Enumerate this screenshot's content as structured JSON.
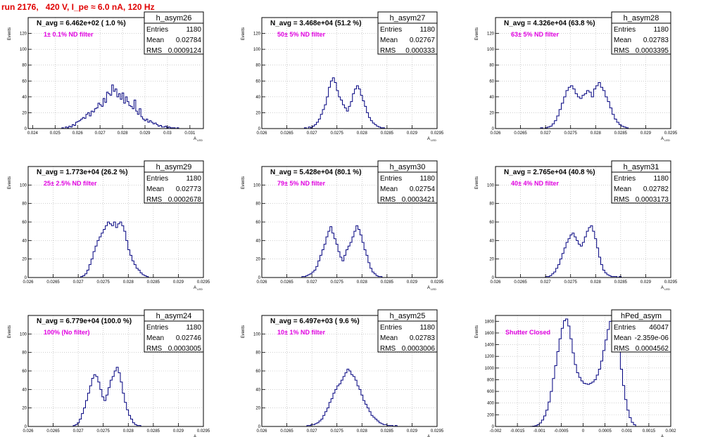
{
  "run_title": "run 2176,   420 V, I_pe ≈ 6.0 nA, 120 Hz",
  "colors": {
    "title": "#e00000",
    "note": "#e000e0",
    "hist": "#00007f",
    "frame": "#000000",
    "grid": "#b0b0b0"
  },
  "stat_labels": {
    "entries": "Entries",
    "mean": "Mean",
    "rms": "RMS"
  },
  "x_axis_label": "A_LED",
  "y_axis_label": "Events",
  "chart_data": [
    {
      "type": "histogram",
      "name": "h_asym26",
      "n_avg": "N_avg = 6.462e+02 ( 1.0 %)",
      "note": "1± 0.1% ND filter",
      "entries": "1180",
      "mean": "0.02784",
      "rms": "0.0009124",
      "xlim": [
        0.0238,
        0.0316
      ],
      "ylim": [
        0,
        140
      ],
      "xticks": [
        0.024,
        0.025,
        0.026,
        0.027,
        0.028,
        0.029,
        0.03,
        0.031
      ],
      "xtick_labels": [
        "0.024",
        "0.025",
        "0.026",
        "0.027",
        "0.028",
        "0.029",
        "0.03",
        "0.031"
      ],
      "yticks": [
        0,
        20,
        40,
        60,
        80,
        100,
        120
      ],
      "bins": {
        "lo": 0.0253,
        "hi": 0.0305,
        "counts": [
          1,
          0,
          2,
          1,
          3,
          2,
          5,
          4,
          8,
          9,
          10,
          12,
          14,
          13,
          18,
          20,
          16,
          22,
          21,
          25,
          26,
          32,
          30,
          28,
          38,
          33,
          46,
          44,
          42,
          55,
          47,
          50,
          40,
          44,
          37,
          45,
          32,
          40,
          34,
          29,
          28,
          25,
          36,
          22,
          18,
          25,
          15,
          12,
          10,
          12,
          8,
          10,
          8,
          6,
          7,
          5,
          3,
          4,
          2,
          2,
          3,
          1,
          2,
          1,
          1,
          1,
          0,
          1
        ]
      }
    },
    {
      "type": "histogram",
      "name": "h_asym27",
      "n_avg": "N_avg = 3.468e+04 (51.2 %)",
      "note": "50± 5% ND filter",
      "entries": "1180",
      "mean": "0.02767",
      "rms": "0.000333",
      "xlim": [
        0.026,
        0.0295
      ],
      "ylim": [
        0,
        140
      ],
      "xticks": [
        0.026,
        0.0265,
        0.027,
        0.0275,
        0.028,
        0.0285,
        0.029,
        0.0295
      ],
      "xtick_labels": [
        "0.026",
        "0.0265",
        "0.027",
        "0.0275",
        "0.028",
        "0.0285",
        "0.029",
        "0.0295"
      ],
      "yticks": [
        0,
        20,
        40,
        60,
        80,
        100,
        120
      ],
      "bins": {
        "lo": 0.02685,
        "hi": 0.02845,
        "counts": [
          1,
          0,
          2,
          1,
          3,
          5,
          8,
          12,
          18,
          24,
          30,
          40,
          52,
          60,
          64,
          58,
          48,
          40,
          36,
          30,
          26,
          22,
          28,
          34,
          44,
          50,
          54,
          50,
          42,
          35,
          28,
          20,
          14,
          10,
          7,
          5,
          3,
          2,
          1,
          1
        ]
      }
    },
    {
      "type": "histogram",
      "name": "h_asym28",
      "n_avg": "N_avg = 4.326e+04 (63.8 %)",
      "note": "63± 5% ND filter",
      "entries": "1180",
      "mean": "0.02783",
      "rms": "0.0003395",
      "xlim": [
        0.026,
        0.0295
      ],
      "ylim": [
        0,
        140
      ],
      "xticks": [
        0.026,
        0.0265,
        0.027,
        0.0275,
        0.028,
        0.0285,
        0.029,
        0.0295
      ],
      "xtick_labels": [
        "0.026",
        "0.0265",
        "0.027",
        "0.0275",
        "0.028",
        "0.0285",
        "0.029",
        "0.0295"
      ],
      "yticks": [
        0,
        20,
        40,
        60,
        80,
        100,
        120
      ],
      "bins": {
        "lo": 0.0269,
        "hi": 0.02865,
        "counts": [
          1,
          0,
          1,
          2,
          3,
          6,
          10,
          16,
          24,
          32,
          40,
          48,
          52,
          54,
          50,
          44,
          40,
          38,
          42,
          44,
          48,
          46,
          40,
          50,
          54,
          58,
          52,
          48,
          40,
          34,
          26,
          18,
          12,
          8,
          5,
          3,
          2,
          1
        ]
      }
    },
    {
      "type": "histogram",
      "name": "h_asym29",
      "n_avg": "N_avg = 1.773e+04 (26.2 %)",
      "note": "25± 2.5% ND filter",
      "entries": "1180",
      "mean": "0.02773",
      "rms": "0.0002678",
      "xlim": [
        0.026,
        0.0295
      ],
      "ylim": [
        0,
        120
      ],
      "xticks": [
        0.026,
        0.0265,
        0.027,
        0.0275,
        0.028,
        0.0285,
        0.029,
        0.0295
      ],
      "xtick_labels": [
        "0.026",
        "0.0265",
        "0.027",
        "0.0275",
        "0.028",
        "0.0285",
        "0.029",
        "0.0295"
      ],
      "yticks": [
        0,
        20,
        40,
        60,
        80,
        100
      ],
      "bins": {
        "lo": 0.02705,
        "hi": 0.0284,
        "counts": [
          1,
          2,
          4,
          8,
          14,
          20,
          28,
          34,
          40,
          44,
          48,
          52,
          56,
          60,
          58,
          56,
          60,
          54,
          58,
          60,
          56,
          50,
          40,
          30,
          24,
          18,
          14,
          10,
          8,
          5,
          3,
          2,
          1
        ]
      }
    },
    {
      "type": "histogram",
      "name": "h_asym30",
      "n_avg": "N_avg = 5.428e+04 (80.1 %)",
      "note": "79± 5% ND filter",
      "entries": "1180",
      "mean": "0.02754",
      "rms": "0.0003421",
      "xlim": [
        0.026,
        0.0295
      ],
      "ylim": [
        0,
        120
      ],
      "xticks": [
        0.026,
        0.0265,
        0.027,
        0.0275,
        0.028,
        0.0285,
        0.029,
        0.0295
      ],
      "xtick_labels": [
        "0.026",
        "0.0265",
        "0.027",
        "0.0275",
        "0.028",
        "0.0285",
        "0.029",
        "0.0295"
      ],
      "yticks": [
        0,
        20,
        40,
        60,
        80,
        100
      ],
      "bins": {
        "lo": 0.0268,
        "hi": 0.0284,
        "counts": [
          1,
          1,
          2,
          3,
          4,
          6,
          8,
          12,
          18,
          24,
          30,
          36,
          44,
          50,
          55,
          48,
          42,
          36,
          28,
          22,
          18,
          24,
          30,
          34,
          38,
          44,
          50,
          56,
          52,
          46,
          38,
          30,
          24,
          16,
          10,
          6,
          4,
          2,
          1,
          1
        ]
      }
    },
    {
      "type": "histogram",
      "name": "h_asym31",
      "n_avg": "N_avg = 2.765e+04 (40.8 %)",
      "note": "40± 4% ND filter",
      "entries": "1180",
      "mean": "0.02782",
      "rms": "0.0003173",
      "xlim": [
        0.026,
        0.0295
      ],
      "ylim": [
        0,
        120
      ],
      "xticks": [
        0.026,
        0.0265,
        0.027,
        0.0275,
        0.028,
        0.0285,
        0.029,
        0.0295
      ],
      "xtick_labels": [
        "0.026",
        "0.0265",
        "0.027",
        "0.0275",
        "0.028",
        "0.0285",
        "0.029",
        "0.0295"
      ],
      "yticks": [
        0,
        20,
        40,
        60,
        80,
        100
      ],
      "bins": {
        "lo": 0.027,
        "hi": 0.02855,
        "counts": [
          1,
          1,
          2,
          4,
          6,
          10,
          14,
          20,
          26,
          32,
          38,
          42,
          46,
          48,
          44,
          40,
          36,
          34,
          38,
          44,
          50,
          54,
          56,
          50,
          42,
          32,
          22,
          14,
          8,
          5,
          3,
          2,
          1,
          1,
          1,
          0,
          1,
          0
        ]
      }
    },
    {
      "type": "histogram",
      "name": "h_asym24",
      "n_avg": "N_avg = 6.779e+04 (100.0 %)",
      "note": "100% (No filter)",
      "entries": "1180",
      "mean": "0.02746",
      "rms": "0.0003005",
      "xlim": [
        0.026,
        0.0295
      ],
      "ylim": [
        0,
        120
      ],
      "xticks": [
        0.026,
        0.0265,
        0.027,
        0.0275,
        0.028,
        0.0285,
        0.029,
        0.0295
      ],
      "xtick_labels": [
        "0.026",
        "0.0265",
        "0.027",
        "0.0275",
        "0.028",
        "0.0285",
        "0.029",
        "0.0295"
      ],
      "yticks": [
        0,
        20,
        40,
        60,
        80,
        100
      ],
      "bins": {
        "lo": 0.0269,
        "hi": 0.02825,
        "counts": [
          1,
          2,
          4,
          8,
          14,
          20,
          28,
          36,
          44,
          52,
          56,
          54,
          48,
          40,
          32,
          28,
          34,
          42,
          50,
          54,
          60,
          64,
          58,
          48,
          36,
          26,
          18,
          12,
          8,
          4,
          2,
          1,
          1
        ]
      }
    },
    {
      "type": "histogram",
      "name": "h_asym25",
      "n_avg": "N_avg = 6.497e+03 ( 9.6 %)",
      "note": "10± 1% ND filter",
      "entries": "1180",
      "mean": "0.02783",
      "rms": "0.0003006",
      "xlim": [
        0.026,
        0.0295
      ],
      "ylim": [
        0,
        120
      ],
      "xticks": [
        0.026,
        0.0265,
        0.027,
        0.0275,
        0.028,
        0.0285,
        0.029,
        0.0295
      ],
      "xtick_labels": [
        "0.026",
        "0.0265",
        "0.027",
        "0.0275",
        "0.028",
        "0.0285",
        "0.029",
        "0.0295"
      ],
      "yticks": [
        0,
        20,
        40,
        60,
        80,
        100
      ],
      "bins": {
        "lo": 0.0269,
        "hi": 0.0287,
        "counts": [
          1,
          1,
          2,
          2,
          3,
          4,
          6,
          8,
          12,
          16,
          20,
          26,
          30,
          36,
          40,
          44,
          46,
          50,
          54,
          58,
          62,
          60,
          56,
          54,
          50,
          44,
          40,
          34,
          28,
          24,
          20,
          16,
          12,
          10,
          8,
          6,
          4,
          3,
          2,
          2,
          1,
          1,
          1,
          0,
          1
        ]
      }
    },
    {
      "type": "histogram",
      "name": "hPed_asym",
      "n_avg": "",
      "note": "Shutter Closed",
      "entries": "46047",
      "mean": "-2.359e-06",
      "rms": "0.0004562",
      "xlim": [
        -0.002,
        0.002
      ],
      "ylim": [
        0,
        1900
      ],
      "xticks": [
        -0.002,
        -0.0015,
        -0.001,
        -0.0005,
        0,
        0.0005,
        0.001,
        0.0015,
        0.002
      ],
      "xtick_labels": [
        "-0.002",
        "-0.0015",
        "-0.001",
        "-0.0005",
        "0",
        "0.0005",
        "0.001",
        "0.0015",
        "0.002"
      ],
      "yticks": [
        0,
        200,
        400,
        600,
        800,
        1000,
        1200,
        1400,
        1600,
        1800
      ],
      "bins": {
        "lo": -0.0012,
        "hi": 0.0012,
        "counts": [
          2,
          6,
          14,
          30,
          60,
          110,
          180,
          280,
          420,
          600,
          820,
          1040,
          1280,
          1500,
          1680,
          1810,
          1840,
          1720,
          1500,
          1260,
          1060,
          920,
          840,
          780,
          740,
          730,
          720,
          740,
          760,
          800,
          880,
          980,
          1120,
          1300,
          1480,
          1660,
          1800,
          1840,
          1760,
          1560,
          1280,
          980,
          700,
          460,
          280,
          150,
          70,
          30
        ]
      }
    }
  ]
}
